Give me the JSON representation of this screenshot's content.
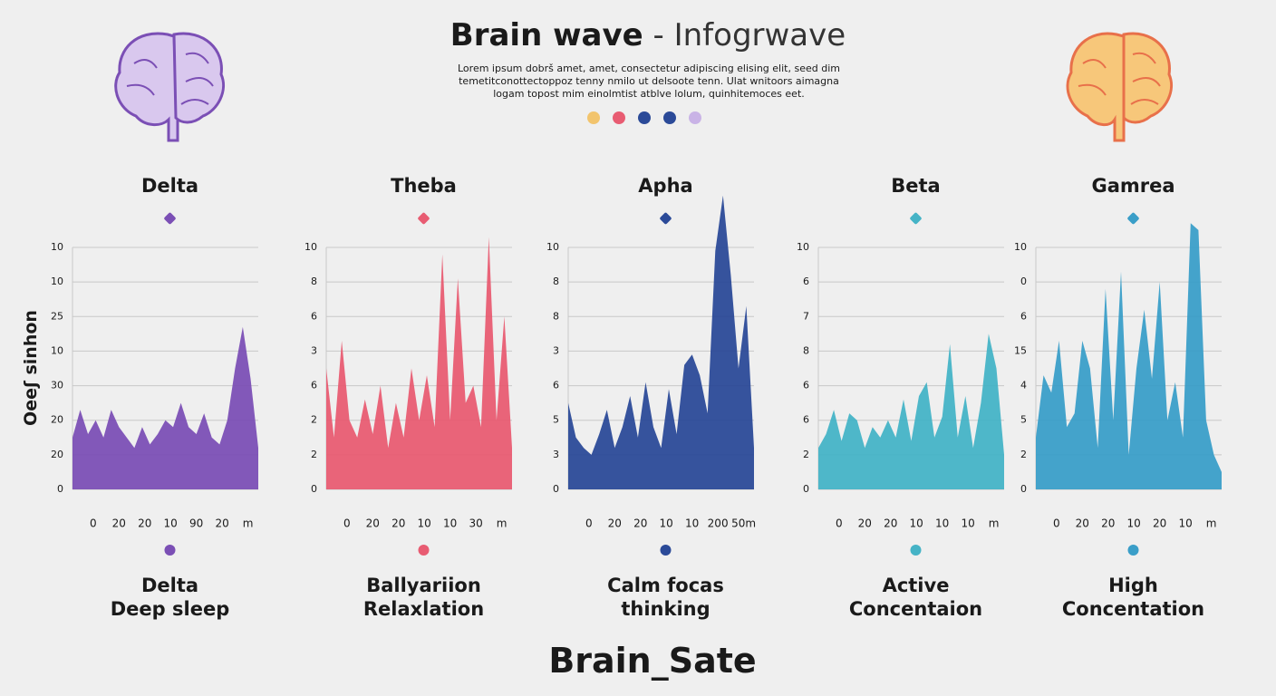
{
  "header": {
    "title": "Brain wave",
    "title_suffix": "- Infogrwave",
    "lines": [
      "Lorem ipsum dobrš amet, amet, consectetur adipiscing elising elit, seed dim",
      "temetitconottectoppoz tenny nmilo ut delsoote tenn. Ulat wnitoors aimagna",
      "logam topost mim einolmtist atblve lolum, quinhitemoces eet."
    ]
  },
  "footer": "Brain_Sate",
  "chart_data": [
    {
      "type": "area",
      "title": "Delta",
      "color": "#7b4fb5",
      "ylabel": "Oeeʃ sinhon",
      "caption": [
        "Delta",
        "Deep sleep"
      ],
      "xlim": [
        -0.8,
        6.4
      ],
      "ylim": [
        0,
        7
      ],
      "xticks": [
        {
          "value": 0,
          "label": "0"
        },
        {
          "value": 1,
          "label": "20"
        },
        {
          "value": 2,
          "label": "20"
        },
        {
          "value": 3,
          "label": "10"
        },
        {
          "value": 4,
          "label": "90"
        },
        {
          "value": 5,
          "label": "20"
        },
        {
          "value": 6,
          "label": "m"
        }
      ],
      "yticks": [
        0,
        {
          "value": 1,
          "label": "20"
        },
        {
          "value": 2,
          "label": "20"
        },
        {
          "value": 3,
          "label": "30"
        },
        {
          "value": 4,
          "label": "10"
        },
        {
          "value": 5,
          "label": "25"
        },
        {
          "value": 6,
          "label": "10"
        },
        {
          "value": 7,
          "label": "10"
        }
      ],
      "x": [
        -0.8,
        -0.5,
        -0.2,
        0.1,
        0.4,
        0.7,
        1,
        1.3,
        1.6,
        1.9,
        2.2,
        2.5,
        2.8,
        3.1,
        3.4,
        3.7,
        4,
        4.3,
        4.6,
        4.9,
        5.2,
        5.5,
        5.8,
        6.1,
        6.4
      ],
      "values": [
        1.5,
        2.3,
        1.6,
        2.0,
        1.5,
        2.3,
        1.8,
        1.5,
        1.2,
        1.8,
        1.3,
        1.6,
        2.0,
        1.8,
        2.5,
        1.8,
        1.6,
        2.2,
        1.5,
        1.3,
        2.0,
        3.5,
        4.7,
        3.2,
        1.2
      ]
    },
    {
      "type": "area",
      "title": "Theba",
      "color": "#e85c72",
      "caption": [
        "Ballyariion",
        "Relaxlation"
      ],
      "xlim": [
        -0.8,
        6.4
      ],
      "ylim": [
        0,
        7
      ],
      "xticks": [
        {
          "value": 0,
          "label": "0"
        },
        {
          "value": 1,
          "label": "20"
        },
        {
          "value": 2,
          "label": "20"
        },
        {
          "value": 3,
          "label": "10"
        },
        {
          "value": 4,
          "label": "10"
        },
        {
          "value": 5,
          "label": "30"
        },
        {
          "value": 6,
          "label": "m"
        }
      ],
      "yticks": [
        0,
        {
          "value": 1,
          "label": "2"
        },
        {
          "value": 2,
          "label": "2"
        },
        {
          "value": 3,
          "label": "6"
        },
        {
          "value": 4,
          "label": "3"
        },
        {
          "value": 5,
          "label": "6"
        },
        {
          "value": 6,
          "label": "8"
        },
        {
          "value": 7,
          "label": "10"
        }
      ],
      "x": [
        -0.8,
        -0.5,
        -0.2,
        0.1,
        0.4,
        0.7,
        1,
        1.3,
        1.6,
        1.9,
        2.2,
        2.5,
        2.8,
        3.1,
        3.4,
        3.7,
        4,
        4.3,
        4.6,
        4.9,
        5.2,
        5.5,
        5.8,
        6.1,
        6.4
      ],
      "values": [
        3.5,
        1.5,
        4.3,
        2.0,
        1.5,
        2.6,
        1.6,
        3.0,
        1.2,
        2.5,
        1.5,
        3.5,
        2.0,
        3.3,
        1.8,
        6.8,
        2.0,
        6.1,
        2.5,
        3.0,
        1.8,
        7.3,
        2.0,
        5.0,
        1.2
      ]
    },
    {
      "type": "area",
      "title": "Apha",
      "color": "#2b4a98",
      "caption": [
        "Calm focas",
        "thinking"
      ],
      "xlim": [
        -0.8,
        6.4
      ],
      "ylim": [
        0,
        7
      ],
      "xticks": [
        {
          "value": 0,
          "label": "0"
        },
        {
          "value": 1,
          "label": "20"
        },
        {
          "value": 2,
          "label": "20"
        },
        {
          "value": 3,
          "label": "10"
        },
        {
          "value": 4,
          "label": "10"
        },
        {
          "value": 5,
          "label": "200"
        },
        {
          "value": 6,
          "label": "50m"
        }
      ],
      "yticks": [
        0,
        {
          "value": 1,
          "label": "3"
        },
        {
          "value": 2,
          "label": "5"
        },
        {
          "value": 3,
          "label": "6"
        },
        {
          "value": 4,
          "label": "3"
        },
        {
          "value": 5,
          "label": "8"
        },
        {
          "value": 6,
          "label": "8"
        },
        {
          "value": 7,
          "label": "10"
        }
      ],
      "x": [
        -0.8,
        -0.5,
        -0.2,
        0.1,
        0.4,
        0.7,
        1,
        1.3,
        1.6,
        1.9,
        2.2,
        2.5,
        2.8,
        3.1,
        3.4,
        3.7,
        4,
        4.3,
        4.6,
        4.9,
        5.2,
        5.5,
        5.8,
        6.1,
        6.4
      ],
      "values": [
        2.5,
        1.5,
        1.2,
        1.0,
        1.6,
        2.3,
        1.2,
        1.8,
        2.7,
        1.5,
        3.1,
        1.8,
        1.2,
        2.9,
        1.6,
        3.6,
        3.9,
        3.3,
        2.2,
        6.9,
        8.5,
        6.2,
        3.5,
        5.3,
        1.2
      ]
    },
    {
      "type": "area",
      "title": "Beta",
      "color": "#45b3c6",
      "caption": [
        "Active",
        "Concentaion"
      ],
      "xlim": [
        -0.8,
        6.4
      ],
      "ylim": [
        0,
        7
      ],
      "xticks": [
        {
          "value": 0,
          "label": "0"
        },
        {
          "value": 1,
          "label": "20"
        },
        {
          "value": 2,
          "label": "20"
        },
        {
          "value": 3,
          "label": "10"
        },
        {
          "value": 4,
          "label": "10"
        },
        {
          "value": 5,
          "label": "10"
        },
        {
          "value": 6,
          "label": "m"
        }
      ],
      "yticks": [
        0,
        {
          "value": 1,
          "label": "2"
        },
        {
          "value": 2,
          "label": "6"
        },
        {
          "value": 3,
          "label": "6"
        },
        {
          "value": 4,
          "label": "8"
        },
        {
          "value": 5,
          "label": "7"
        },
        {
          "value": 6,
          "label": "6"
        },
        {
          "value": 7,
          "label": "10"
        }
      ],
      "x": [
        -0.8,
        -0.5,
        -0.2,
        0.1,
        0.4,
        0.7,
        1,
        1.3,
        1.6,
        1.9,
        2.2,
        2.5,
        2.8,
        3.1,
        3.4,
        3.7,
        4,
        4.3,
        4.6,
        4.9,
        5.2,
        5.5,
        5.8,
        6.1,
        6.4
      ],
      "values": [
        1.2,
        1.6,
        2.3,
        1.4,
        2.2,
        2.0,
        1.2,
        1.8,
        1.5,
        2.0,
        1.5,
        2.6,
        1.4,
        2.7,
        3.1,
        1.5,
        2.1,
        4.2,
        1.5,
        2.7,
        1.2,
        2.5,
        4.5,
        3.5,
        1.0
      ]
    },
    {
      "type": "area",
      "title": "Gamrea",
      "color": "#3a9ec8",
      "caption": [
        "High",
        "Concentation"
      ],
      "xlim": [
        -0.8,
        6.4
      ],
      "ylim": [
        0,
        7
      ],
      "xticks": [
        {
          "value": 0,
          "label": "0"
        },
        {
          "value": 1,
          "label": "20"
        },
        {
          "value": 2,
          "label": "20"
        },
        {
          "value": 3,
          "label": "10"
        },
        {
          "value": 4,
          "label": "20"
        },
        {
          "value": 5,
          "label": "10"
        },
        {
          "value": 6,
          "label": "m"
        }
      ],
      "yticks": [
        0,
        {
          "value": 1,
          "label": "2"
        },
        {
          "value": 2,
          "label": "5"
        },
        {
          "value": 3,
          "label": "4"
        },
        {
          "value": 4,
          "label": "15"
        },
        {
          "value": 5,
          "label": "6"
        },
        {
          "value": 6,
          "label": "0"
        },
        {
          "value": 7,
          "label": "10"
        }
      ],
      "x": [
        -0.8,
        -0.5,
        -0.2,
        0.1,
        0.4,
        0.7,
        1,
        1.3,
        1.6,
        1.9,
        2.2,
        2.5,
        2.8,
        3.1,
        3.4,
        3.7,
        4,
        4.3,
        4.6,
        4.9,
        5.2,
        5.5,
        5.8,
        6.1,
        6.4
      ],
      "values": [
        1.5,
        3.3,
        2.8,
        4.3,
        1.8,
        2.2,
        4.3,
        3.5,
        1.2,
        5.8,
        2.0,
        6.3,
        1.0,
        3.5,
        5.2,
        3.2,
        6.0,
        2.0,
        3.1,
        1.5,
        7.7,
        7.5,
        2.0,
        1.0,
        0.5
      ]
    }
  ]
}
